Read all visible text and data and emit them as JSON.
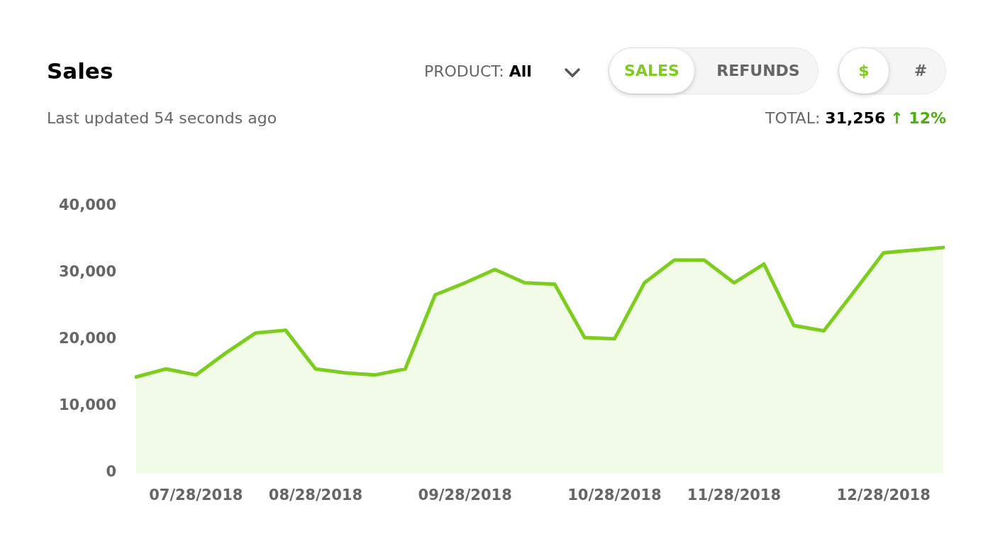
{
  "chart_data": {
    "type": "area",
    "title": "Sales",
    "subtitle": "Last updated 54 seconds ago",
    "annotations": [
      "PRODUCT:",
      "All",
      "SALES",
      "REFUNDS",
      "$",
      "#",
      "TOTAL:",
      "31,256",
      "↑ 12%"
    ],
    "categories": [
      null,
      null,
      "07/28/2018",
      null,
      null,
      null,
      "08/28/2018",
      null,
      null,
      null,
      null,
      "09/28/2018",
      null,
      null,
      null,
      null,
      "10/28/2018",
      null,
      null,
      null,
      "11/28/2018",
      null,
      null,
      null,
      null,
      "12/28/2018",
      null,
      null
    ],
    "series": [
      {
        "color": "#7ccd1e",
        "values": [
          14400,
          15600,
          14700,
          18000,
          21000,
          21400,
          15600,
          15000,
          14700,
          15600,
          26700,
          28500,
          30500,
          28500,
          28300,
          20300,
          20100,
          28500,
          31900,
          31900,
          28500,
          31300,
          22100,
          21300,
          27100,
          33000,
          33400,
          33800
        ]
      }
    ],
    "ylim": [
      0,
      40000
    ],
    "yticks": [
      0,
      {
        "value": 10000,
        "label": "10,000"
      },
      {
        "value": 20000,
        "label": "20,000"
      },
      {
        "value": 30000,
        "label": "30,000"
      },
      {
        "value": 40000,
        "label": "40,000"
      }
    ],
    "grid": false,
    "legend": false,
    "marker": "none",
    "line_style": "solid"
  }
}
